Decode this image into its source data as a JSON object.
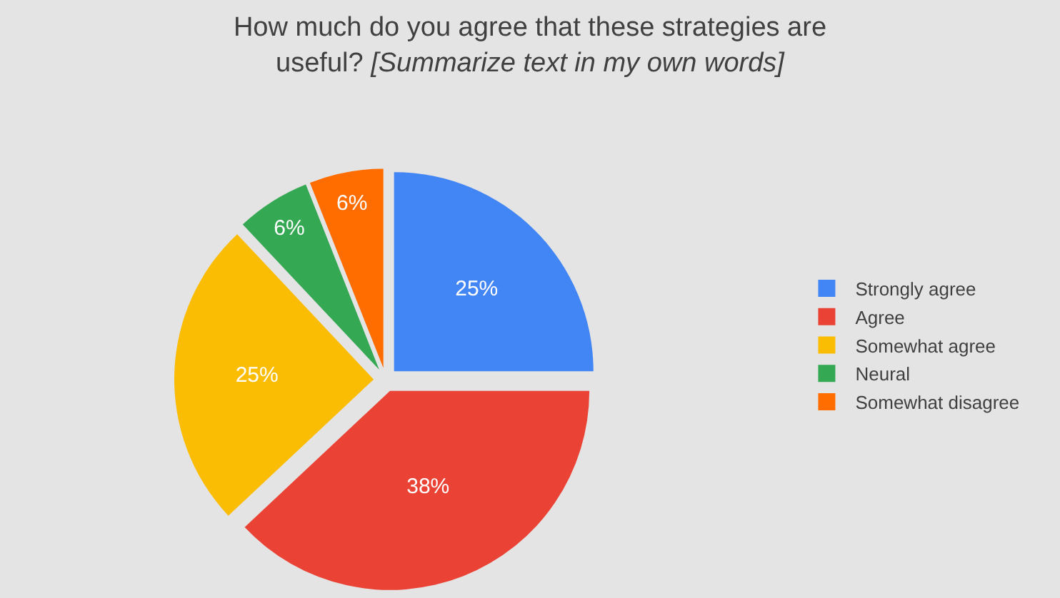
{
  "chart_data": {
    "type": "pie",
    "title": "How much do you agree that these strategies are useful?",
    "subtitle": "[Summarize text in my own words]",
    "categories": [
      "Strongly agree",
      "Agree",
      "Somewhat agree",
      "Neural",
      "Somewhat disagree"
    ],
    "values": [
      25,
      38,
      25,
      6,
      6
    ],
    "colors": [
      "#4285f4",
      "#ea4335",
      "#fbbc04",
      "#34a853",
      "#ff6d01"
    ],
    "value_labels": [
      "25%",
      "38%",
      "25%",
      "6%",
      "6%"
    ],
    "legend": "right"
  }
}
